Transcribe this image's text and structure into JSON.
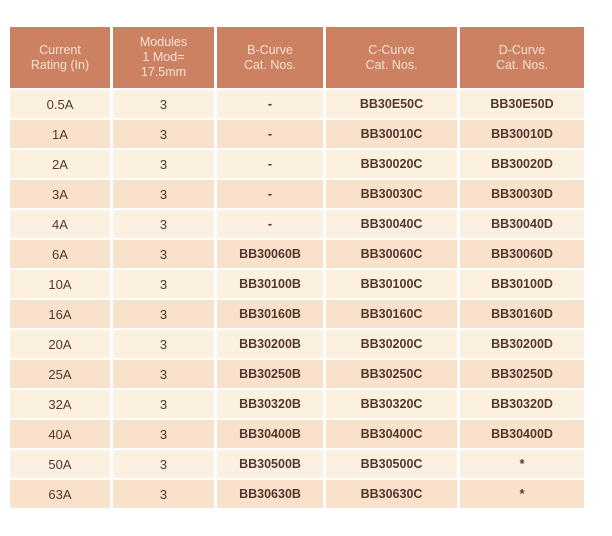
{
  "table": {
    "colors": {
      "header_bg": "#cd8163",
      "header_text": "#f6e2d2",
      "row_light_bg": "#fcf0e0",
      "row_dark_bg": "#f9e2cb",
      "cell_text": "#54362d",
      "page_bg": "#ffffff"
    },
    "columns": [
      {
        "id": "current-rating",
        "lines": [
          "Current",
          "Rating (In)"
        ]
      },
      {
        "id": "modules",
        "lines": [
          "Modules",
          "1 Mod=",
          "17.5mm"
        ]
      },
      {
        "id": "b-curve",
        "lines": [
          "B-Curve",
          "Cat. Nos."
        ]
      },
      {
        "id": "c-curve",
        "lines": [
          "C-Curve",
          "Cat. Nos."
        ]
      },
      {
        "id": "d-curve",
        "lines": [
          "D-Curve",
          "Cat. Nos."
        ]
      }
    ],
    "rows": [
      {
        "rating": "0.5A",
        "modules": "3",
        "b_curve": "-",
        "c_curve": "BB30E50C",
        "d_curve": "BB30E50D"
      },
      {
        "rating": "1A",
        "modules": "3",
        "b_curve": "-",
        "c_curve": "BB30010C",
        "d_curve": "BB30010D"
      },
      {
        "rating": "2A",
        "modules": "3",
        "b_curve": "-",
        "c_curve": "BB30020C",
        "d_curve": "BB30020D"
      },
      {
        "rating": "3A",
        "modules": "3",
        "b_curve": "-",
        "c_curve": "BB30030C",
        "d_curve": "BB30030D"
      },
      {
        "rating": "4A",
        "modules": "3",
        "b_curve": "-",
        "c_curve": "BB30040C",
        "d_curve": "BB30040D"
      },
      {
        "rating": "6A",
        "modules": "3",
        "b_curve": "BB30060B",
        "c_curve": "BB30060C",
        "d_curve": "BB30060D"
      },
      {
        "rating": "10A",
        "modules": "3",
        "b_curve": "BB30100B",
        "c_curve": "BB30100C",
        "d_curve": "BB30100D"
      },
      {
        "rating": "16A",
        "modules": "3",
        "b_curve": "BB30160B",
        "c_curve": "BB30160C",
        "d_curve": "BB30160D"
      },
      {
        "rating": "20A",
        "modules": "3",
        "b_curve": "BB30200B",
        "c_curve": "BB30200C",
        "d_curve": "BB30200D"
      },
      {
        "rating": "25A",
        "modules": "3",
        "b_curve": "BB30250B",
        "c_curve": "BB30250C",
        "d_curve": "BB30250D"
      },
      {
        "rating": "32A",
        "modules": "3",
        "b_curve": "BB30320B",
        "c_curve": "BB30320C",
        "d_curve": "BB30320D"
      },
      {
        "rating": "40A",
        "modules": "3",
        "b_curve": "BB30400B",
        "c_curve": "BB30400C",
        "d_curve": "BB30400D"
      },
      {
        "rating": "50A",
        "modules": "3",
        "b_curve": "BB30500B",
        "c_curve": "BB30500C",
        "d_curve": "*"
      },
      {
        "rating": "63A",
        "modules": "3",
        "b_curve": "BB30630B",
        "c_curve": "BB30630C",
        "d_curve": "*"
      }
    ]
  }
}
